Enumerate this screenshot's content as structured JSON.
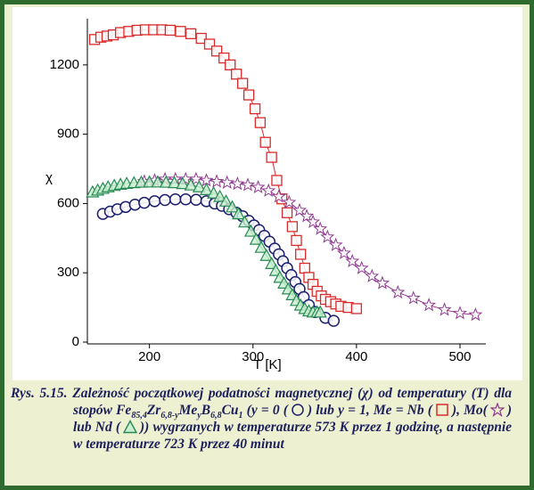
{
  "chart_data": {
    "type": "line",
    "xlabel": "T [K]",
    "ylabel": "χ",
    "xlim": [
      140,
      525
    ],
    "ylim": [
      0,
      1400
    ],
    "xticks": [
      200,
      300,
      400,
      500
    ],
    "yticks": [
      0,
      300,
      600,
      900,
      1200
    ],
    "series": [
      {
        "marker": "circle",
        "color": "#1c1f6e",
        "x": [
          155,
          162,
          169,
          177,
          186,
          195,
          205,
          215,
          225,
          235,
          245,
          255,
          263,
          270,
          277,
          284,
          290,
          296,
          301,
          306,
          311,
          316,
          321,
          325,
          329,
          333,
          337,
          341,
          345,
          349,
          354,
          360,
          370,
          378
        ],
        "values": [
          555,
          565,
          575,
          585,
          595,
          603,
          610,
          615,
          618,
          618,
          616,
          610,
          600,
          590,
          575,
          560,
          545,
          525,
          505,
          485,
          460,
          435,
          405,
          380,
          350,
          320,
          290,
          260,
          230,
          195,
          160,
          130,
          105,
          92
        ]
      },
      {
        "marker": "square",
        "color": "#d82a2a",
        "x": [
          147,
          153,
          159,
          165,
          172,
          180,
          188,
          196,
          204,
          212,
          220,
          230,
          240,
          250,
          258,
          265,
          272,
          278,
          284,
          290,
          296,
          302,
          307,
          312,
          318,
          323,
          328,
          333,
          338,
          342,
          346,
          350,
          354,
          358,
          362,
          366,
          370,
          375,
          380,
          385,
          392,
          400
        ],
        "values": [
          1310,
          1320,
          1325,
          1330,
          1340,
          1345,
          1350,
          1352,
          1352,
          1352,
          1350,
          1345,
          1335,
          1315,
          1290,
          1260,
          1230,
          1200,
          1160,
          1120,
          1070,
          1010,
          950,
          865,
          800,
          700,
          620,
          560,
          500,
          440,
          380,
          320,
          280,
          250,
          220,
          200,
          185,
          175,
          165,
          155,
          150,
          145
        ]
      },
      {
        "marker": "star",
        "color": "#8e3a8e",
        "x": [
          195,
          205,
          215,
          225,
          235,
          245,
          255,
          265,
          275,
          285,
          295,
          305,
          315,
          325,
          335,
          345,
          352,
          358,
          365,
          372,
          380,
          388,
          396,
          405,
          415,
          425,
          440,
          455,
          470,
          485,
          500,
          515
        ],
        "values": [
          695,
          700,
          705,
          705,
          705,
          705,
          700,
          695,
          690,
          685,
          680,
          670,
          655,
          630,
          605,
          570,
          545,
          520,
          490,
          455,
          420,
          385,
          350,
          320,
          285,
          255,
          215,
          190,
          160,
          140,
          125,
          118
        ]
      },
      {
        "marker": "triangle",
        "color": "#2a8a56",
        "x": [
          145,
          150,
          155,
          160,
          166,
          172,
          178,
          185,
          192,
          200,
          208,
          216,
          224,
          232,
          240,
          248,
          255,
          262,
          268,
          274,
          280,
          286,
          292,
          298,
          303,
          308,
          313,
          318,
          322,
          326,
          330,
          334,
          338,
          342,
          346,
          350,
          354,
          358,
          362,
          365
        ],
        "values": [
          650,
          658,
          665,
          672,
          678,
          683,
          687,
          690,
          692,
          693,
          693,
          692,
          690,
          686,
          680,
          672,
          660,
          645,
          630,
          610,
          585,
          555,
          520,
          480,
          445,
          410,
          375,
          340,
          310,
          280,
          255,
          230,
          205,
          180,
          160,
          145,
          135,
          130,
          130,
          130
        ]
      }
    ]
  },
  "caption": [
    "Rys. 5.15. Zależność początkowej podatności magnetycznej  (χ) od temperatury (T) dla stopów Fe",
    "85,4",
    "Zr",
    "6,8-y",
    "Me",
    "y",
    "B",
    "6,8",
    "Cu",
    "1",
    " (y = 0 (",
    ") lub y = 1, Me = Nb (",
    "), Mo(",
    ") lub Nd (",
    ")) wygrzanych w temperaturze 573 K przez 1 godzinę, a następnie w temperaturze 723 K przez 40 minut"
  ]
}
